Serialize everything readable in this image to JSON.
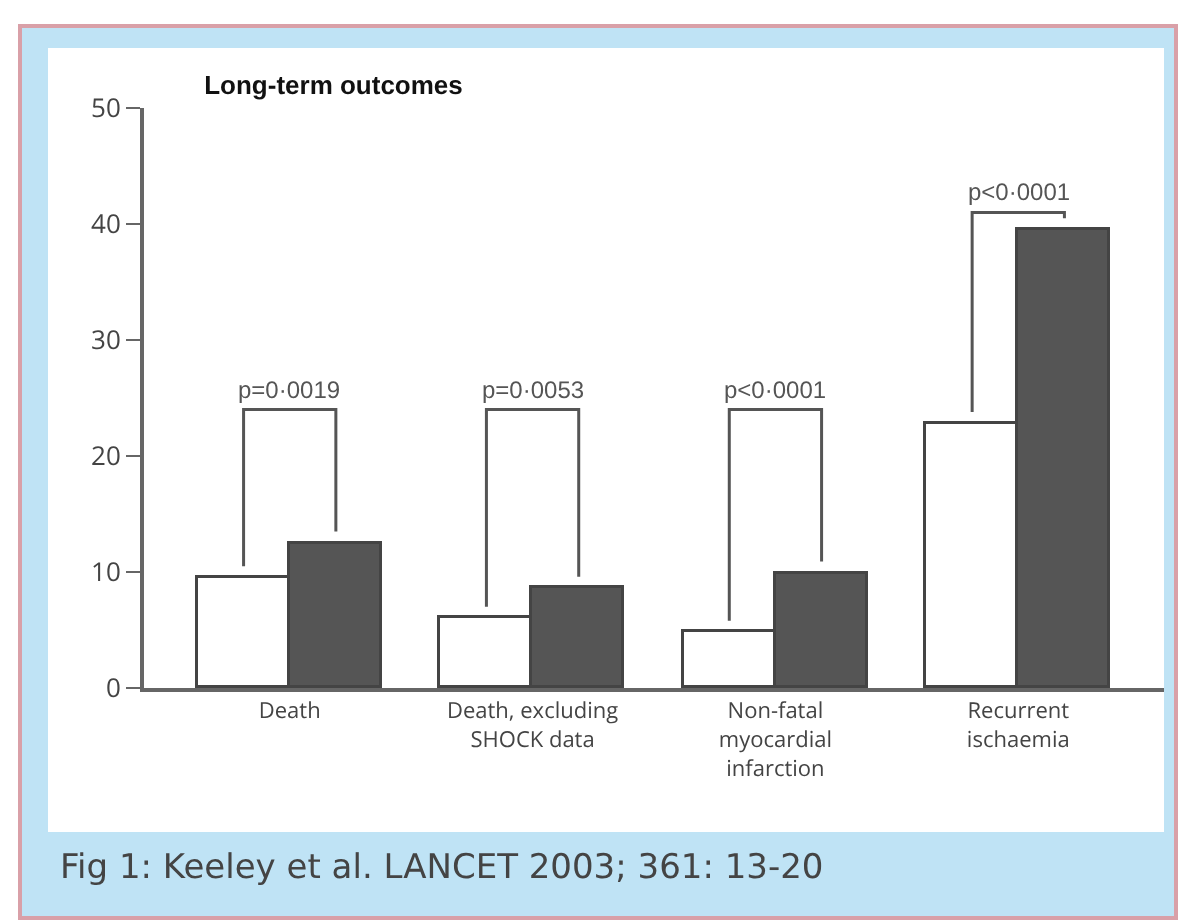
{
  "chart_data": {
    "type": "bar",
    "title": "Long-term outcomes",
    "categories": [
      "Death",
      "Death, excluding SHOCK data",
      "Non-fatal myocardial infarction",
      "Recurrent ischaemia"
    ],
    "series": [
      {
        "color": "#ffffff",
        "values": [
          9.5,
          6.0,
          4.8,
          22.8
        ]
      },
      {
        "color": "#555555",
        "values": [
          12.5,
          8.6,
          9.9,
          39.5
        ]
      }
    ],
    "ylim": [
      0,
      50
    ],
    "yticks": [
      0,
      10,
      20,
      30,
      40,
      50
    ],
    "grid": false,
    "annotations": [
      "p=0·0019",
      "p=0·0053",
      "p<0·0001",
      "p<0·0001",
      "Fig 1: Keeley et al. LANCET  2003; 361: 13-20"
    ]
  }
}
